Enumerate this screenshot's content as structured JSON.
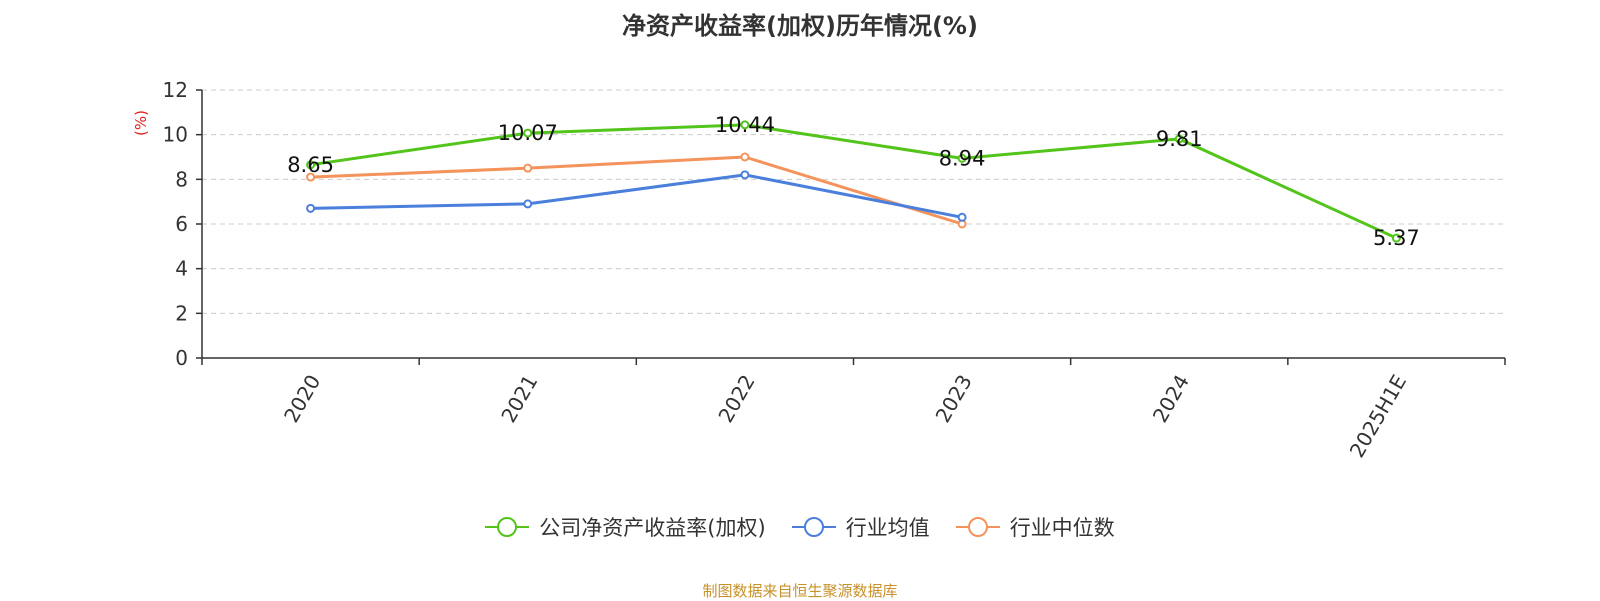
{
  "title": "净资产收益率(加权)历年情况(%)",
  "source": "制图数据来自恒生聚源数据库",
  "chart_data": {
    "type": "line",
    "categories": [
      "2020",
      "2021",
      "2022",
      "2023",
      "2024",
      "2025H1E"
    ],
    "ylabel": "(%)",
    "ylim": [
      0,
      12
    ],
    "yticks": [
      0,
      2,
      4,
      6,
      8,
      10,
      12
    ],
    "grid": true,
    "legend_position": "bottom",
    "series": [
      {
        "name": "公司净资产收益率(加权)",
        "color": "#52c41a",
        "values": [
          8.65,
          10.07,
          10.44,
          8.94,
          9.81,
          5.37
        ],
        "show_labels": true
      },
      {
        "name": "行业均值",
        "color": "#4a7fdc",
        "values": [
          6.7,
          6.9,
          8.2,
          6.3,
          null,
          null
        ],
        "show_labels": false
      },
      {
        "name": "行业中位数",
        "color": "#f4935b",
        "values": [
          8.1,
          8.5,
          9.0,
          6.0,
          null,
          null
        ],
        "show_labels": false
      }
    ]
  }
}
